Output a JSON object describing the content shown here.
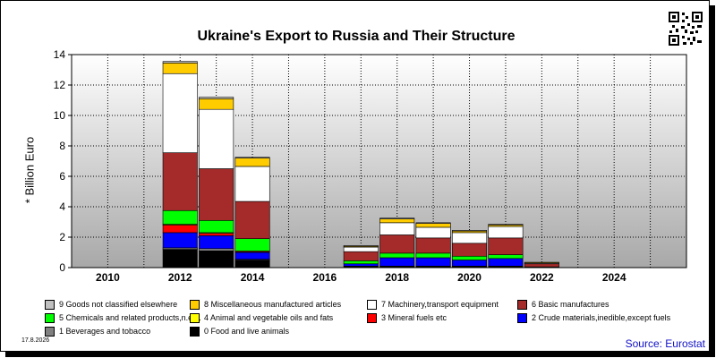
{
  "chart_data": {
    "type": "bar",
    "stacked": true,
    "title": "Ukraine's Export to Russia and Their Structure",
    "ylabel": "* Billion Euro",
    "xlabel": "",
    "ylim": [
      0,
      14
    ],
    "yticks": [
      0,
      2,
      4,
      6,
      8,
      10,
      12,
      14
    ],
    "xlim": [
      2009,
      2026
    ],
    "xticks": [
      2010,
      2012,
      2014,
      2016,
      2018,
      2020,
      2022,
      2024
    ],
    "grid": true,
    "legend_position": "bottom",
    "categories": [
      2012,
      2013,
      2014,
      2017,
      2018,
      2019,
      2020,
      2021,
      2022
    ],
    "series": [
      {
        "name": "0 Food and live animals",
        "color": "#000000",
        "values": [
          1.2,
          1.1,
          0.5,
          0.1,
          0.1,
          0.1,
          0.1,
          0.1,
          0.0
        ]
      },
      {
        "name": "1 Beverages and tobacco",
        "color": "#808080",
        "values": [
          0.1,
          0.15,
          0.05,
          0.0,
          0.0,
          0.0,
          0.0,
          0.0,
          0.0
        ]
      },
      {
        "name": "2 Crude materials,inedible,except fuels",
        "color": "#0000ff",
        "values": [
          1.0,
          0.85,
          0.45,
          0.15,
          0.55,
          0.55,
          0.4,
          0.5,
          0.0
        ]
      },
      {
        "name": "3 Mineral fuels etc",
        "color": "#ff0000",
        "values": [
          0.5,
          0.15,
          0.05,
          0.0,
          0.0,
          0.0,
          0.0,
          0.0,
          0.0
        ]
      },
      {
        "name": "4 Animal and vegetable oils and fats",
        "color": "#ffff00",
        "values": [
          0.05,
          0.05,
          0.05,
          0.0,
          0.0,
          0.0,
          0.0,
          0.0,
          0.0
        ]
      },
      {
        "name": "5 Chemicals and related products,n.e.s.",
        "color": "#00ff00",
        "values": [
          0.9,
          0.8,
          0.8,
          0.2,
          0.3,
          0.3,
          0.25,
          0.25,
          0.05
        ]
      },
      {
        "name": "6 Basic manufactures",
        "color": "#a52a2a",
        "values": [
          3.8,
          3.4,
          2.45,
          0.6,
          1.2,
          1.0,
          0.85,
          1.1,
          0.2
        ]
      },
      {
        "name": "7 Machinery,transport equipment",
        "color": "#ffffff",
        "values": [
          5.2,
          3.9,
          2.3,
          0.3,
          0.8,
          0.7,
          0.7,
          0.75,
          0.05
        ]
      },
      {
        "name": "8 Miscellaneous manufactured articles",
        "color": "#ffcc00",
        "values": [
          0.7,
          0.7,
          0.55,
          0.05,
          0.25,
          0.25,
          0.1,
          0.1,
          0.05
        ]
      },
      {
        "name": "9 Goods not classified elsewhere",
        "color": "#c0c0c0",
        "values": [
          0.1,
          0.1,
          0.05,
          0.05,
          0.05,
          0.05,
          0.05,
          0.05,
          0.0
        ]
      }
    ]
  },
  "legend": [
    {
      "label": "9 Goods not classified elsewhere",
      "color": "#c0c0c0"
    },
    {
      "label": "8 Miscellaneous manufactured articles",
      "color": "#ffcc00"
    },
    {
      "label": "7 Machinery,transport equipment",
      "color": "#ffffff"
    },
    {
      "label": "6 Basic manufactures",
      "color": "#a52a2a"
    },
    {
      "label": "5 Chemicals and related products,n.e.s.",
      "color": "#00ff00"
    },
    {
      "label": "4 Animal and vegetable oils and fats",
      "color": "#ffff00"
    },
    {
      "label": "3 Mineral fuels etc",
      "color": "#ff0000"
    },
    {
      "label": "2 Crude materials,inedible,except fuels",
      "color": "#0000ff"
    },
    {
      "label": "1 Beverages and tobacco",
      "color": "#808080"
    },
    {
      "label": "0 Food and live animals",
      "color": "#000000"
    }
  ],
  "footer": {
    "date": "17.8.2026",
    "source": "Source: Eurostat"
  },
  "icons": {
    "qr": "qr-code-icon"
  }
}
